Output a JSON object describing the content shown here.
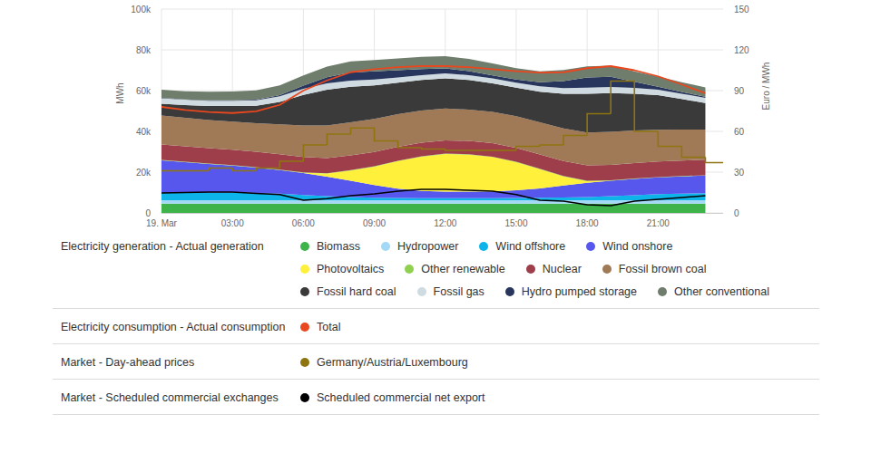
{
  "chart_data": {
    "type": "area",
    "stacked": true,
    "grid": true,
    "legend": "bottom",
    "y_label": "MWh",
    "y2_label": "Euro / MWh",
    "x": [
      0,
      1,
      2,
      3,
      4,
      5,
      6,
      7,
      8,
      9,
      10,
      11,
      12,
      13,
      14,
      15,
      16,
      17,
      18,
      19,
      20,
      21,
      22,
      23
    ],
    "xlim": [
      0,
      23.75
    ],
    "xticks": [
      {
        "value": 0,
        "label": "19. Mar"
      },
      {
        "value": 3,
        "label": "03:00"
      },
      {
        "value": 6,
        "label": "06:00"
      },
      {
        "value": 9,
        "label": "09:00"
      },
      {
        "value": 12,
        "label": "12:00"
      },
      {
        "value": 15,
        "label": "15:00"
      },
      {
        "value": 18,
        "label": "18:00"
      },
      {
        "value": 21,
        "label": "21:00"
      }
    ],
    "ylim": [
      0,
      100000
    ],
    "yticks": [
      0,
      {
        "value": 20000,
        "label": "20k"
      },
      {
        "value": 40000,
        "label": "40k"
      },
      {
        "value": 60000,
        "label": "60k"
      },
      {
        "value": 80000,
        "label": "80k"
      },
      {
        "value": 100000,
        "label": "100k"
      }
    ],
    "y2lim": [
      0,
      150
    ],
    "y2ticks": [
      0,
      30,
      60,
      90,
      120,
      150
    ],
    "series": [
      {
        "name": "Biomass",
        "group": "Electricity generation - Actual generation",
        "type": "area",
        "color": "#3db34a",
        "values": [
          4600,
          4600,
          4600,
          4600,
          4600,
          4600,
          4600,
          4600,
          4600,
          4600,
          4600,
          4600,
          4600,
          4600,
          4600,
          4600,
          4600,
          4600,
          4600,
          4600,
          4600,
          4600,
          4600,
          4600
        ]
      },
      {
        "name": "Hydropower",
        "group": "Electricity generation - Actual generation",
        "type": "area",
        "color": "#a3d9f5",
        "values": [
          1600,
          1600,
          1600,
          1600,
          1600,
          1600,
          1600,
          1600,
          1600,
          1600,
          1600,
          1600,
          1600,
          1600,
          1600,
          1600,
          1600,
          1600,
          1600,
          1600,
          1600,
          1600,
          1600,
          1600
        ]
      },
      {
        "name": "Wind offshore",
        "group": "Electricity generation - Actual generation",
        "type": "area",
        "color": "#0db4ea",
        "values": [
          3600,
          3700,
          3800,
          3800,
          3600,
          3200,
          2600,
          2000,
          1600,
          1300,
          1100,
          1000,
          1000,
          1000,
          1000,
          1100,
          1200,
          1400,
          1600,
          2000,
          2500,
          3000,
          3300,
          3500
        ]
      },
      {
        "name": "Wind onshore",
        "group": "Electricity generation - Actual generation",
        "type": "area",
        "color": "#5757ee",
        "values": [
          16000,
          15000,
          14000,
          13200,
          12400,
          11600,
          10800,
          9600,
          8000,
          6200,
          4600,
          3600,
          3200,
          3200,
          3400,
          3800,
          4600,
          5800,
          7000,
          7600,
          8000,
          8200,
          8400,
          8600
        ]
      },
      {
        "name": "Photovoltaics",
        "group": "Electricity generation - Actual generation",
        "type": "area",
        "color": "#fff03c",
        "values": [
          0,
          0,
          0,
          0,
          0,
          0,
          100,
          1500,
          5000,
          9000,
          13500,
          16800,
          18500,
          18200,
          16800,
          13800,
          9500,
          4500,
          800,
          0,
          0,
          0,
          0,
          0
        ]
      },
      {
        "name": "Other renewable",
        "group": "Electricity generation - Actual generation",
        "type": "area",
        "color": "#8fd14f",
        "values": [
          200,
          200,
          200,
          200,
          200,
          200,
          200,
          200,
          200,
          200,
          200,
          200,
          200,
          200,
          200,
          200,
          200,
          200,
          200,
          200,
          200,
          200,
          200,
          200
        ]
      },
      {
        "name": "Nuclear",
        "group": "Electricity generation - Actual generation",
        "type": "area",
        "color": "#9e3e4b",
        "values": [
          7600,
          7600,
          7600,
          7600,
          7600,
          7600,
          7600,
          7400,
          7200,
          7000,
          6800,
          6600,
          6500,
          6500,
          6600,
          6800,
          7000,
          7300,
          7500,
          7600,
          7600,
          7600,
          7600,
          7600
        ]
      },
      {
        "name": "Fossil brown coal",
        "group": "Electricity generation - Actual generation",
        "type": "area",
        "color": "#a07a57",
        "values": [
          14200,
          14000,
          13800,
          13800,
          14000,
          14600,
          15400,
          16000,
          16200,
          16200,
          16000,
          15800,
          15600,
          15400,
          15400,
          15600,
          15800,
          16000,
          16200,
          16200,
          16000,
          15600,
          15200,
          14800
        ]
      },
      {
        "name": "Fossil hard coal",
        "group": "Electricity generation - Actual generation",
        "type": "area",
        "color": "#3a3a3a",
        "values": [
          5800,
          6200,
          6800,
          7600,
          8600,
          11000,
          15000,
          17500,
          17500,
          16500,
          15500,
          15000,
          14800,
          14500,
          14000,
          14000,
          15000,
          17000,
          19000,
          19000,
          18000,
          17000,
          15000,
          13000
        ]
      },
      {
        "name": "Fossil gas",
        "group": "Electricity generation - Actual generation",
        "type": "area",
        "color": "#cfdbe1",
        "values": [
          2600,
          2600,
          2600,
          2600,
          2600,
          2800,
          3000,
          3200,
          3000,
          2800,
          2600,
          2400,
          2400,
          2400,
          2400,
          2400,
          2600,
          2800,
          3000,
          3000,
          2800,
          2600,
          2600,
          2600
        ]
      },
      {
        "name": "Hydro pumped storage",
        "group": "Electricity generation - Actual generation",
        "type": "area",
        "color": "#28365e",
        "values": [
          300,
          200,
          200,
          200,
          300,
          600,
          1500,
          3000,
          4000,
          4000,
          3500,
          3000,
          2500,
          2000,
          1500,
          1500,
          2000,
          3500,
          5000,
          5000,
          3000,
          1500,
          800,
          500
        ]
      },
      {
        "name": "Other conventional",
        "group": "Electricity generation - Actual generation",
        "type": "area",
        "color": "#6f7d6c",
        "values": [
          4000,
          4000,
          4200,
          4400,
          4600,
          4800,
          5000,
          5200,
          5400,
          5600,
          5800,
          6000,
          6000,
          6000,
          5800,
          5600,
          5400,
          5400,
          5400,
          5400,
          5200,
          5000,
          4800,
          4600
        ]
      },
      {
        "name": "Total",
        "group": "Electricity consumption - Actual consumption",
        "type": "line",
        "color": "#e8471f",
        "values": [
          52000,
          50500,
          49500,
          49000,
          49800,
          53000,
          60000,
          65000,
          69000,
          70500,
          71500,
          72000,
          72000,
          71500,
          70500,
          69500,
          68800,
          69000,
          71000,
          72000,
          70000,
          67000,
          63000,
          58700
        ]
      },
      {
        "name": "Germany/Austria/Luxembourg",
        "group": "Market - Day-ahead prices",
        "type": "line",
        "line_style": "step",
        "axis": "y2",
        "color": "#8f7510",
        "values": [
          31,
          31,
          33,
          31,
          33,
          38,
          50,
          58,
          62.5,
          53,
          48,
          47,
          46,
          46,
          46,
          49,
          50,
          57,
          73,
          97,
          60,
          49,
          41,
          37
        ]
      },
      {
        "name": "Scheduled commercial net export",
        "group": "Market - Scheduled commercial exchanges",
        "type": "line",
        "color": "#000000",
        "values": [
          9800,
          10000,
          10200,
          10200,
          9600,
          9000,
          6200,
          7000,
          8400,
          9300,
          10700,
          11600,
          11600,
          11100,
          10700,
          9000,
          6200,
          5800,
          4000,
          3600,
          5800,
          6700,
          7600,
          8400
        ]
      }
    ]
  }
}
